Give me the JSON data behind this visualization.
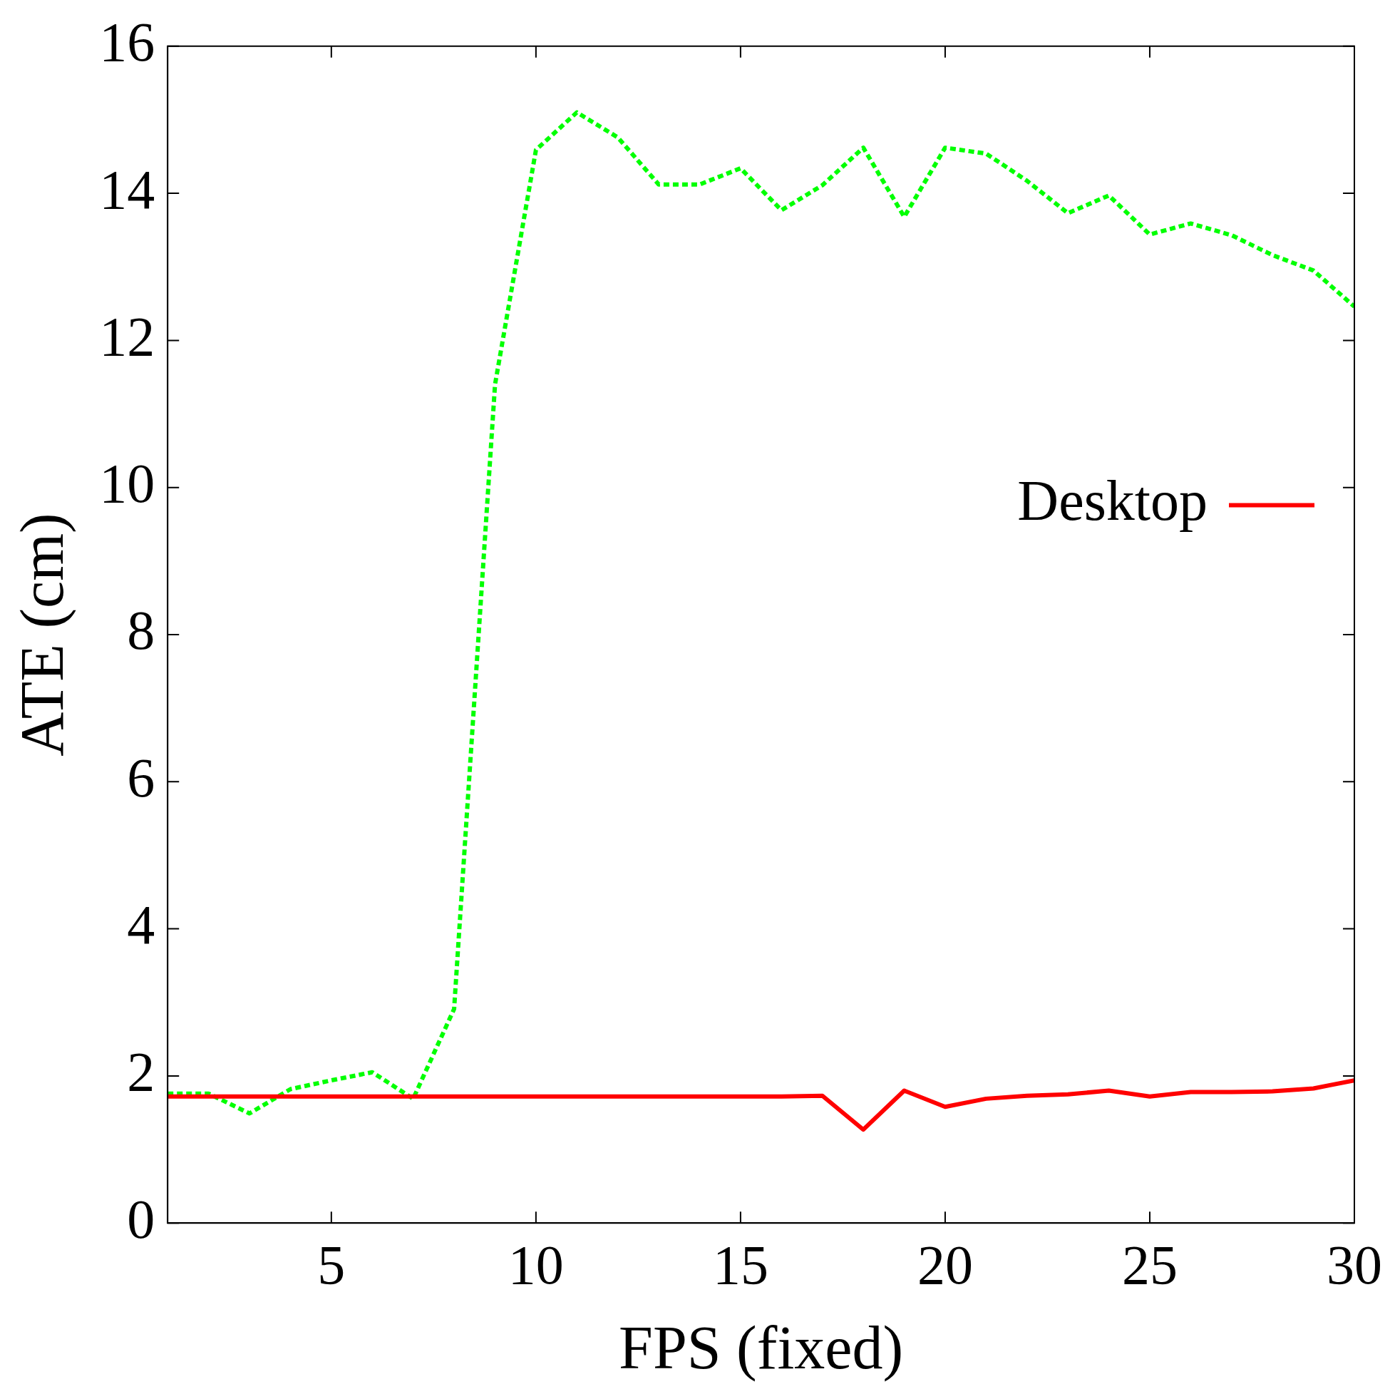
{
  "chart_data": {
    "type": "line",
    "xlabel": "FPS (fixed)",
    "ylabel": "ATE (cm)",
    "x": [
      1,
      2,
      3,
      4,
      5,
      6,
      7,
      8,
      9,
      10,
      11,
      12,
      13,
      14,
      15,
      16,
      17,
      18,
      19,
      20,
      21,
      22,
      23,
      24,
      25,
      26,
      27,
      28,
      29,
      30
    ],
    "series": [
      {
        "name": "Desktop",
        "color": "#ff0000",
        "line_style": "solid",
        "values": [
          1.72,
          1.72,
          1.72,
          1.72,
          1.72,
          1.72,
          1.72,
          1.72,
          1.72,
          1.72,
          1.72,
          1.72,
          1.72,
          1.72,
          1.72,
          1.72,
          1.73,
          1.27,
          1.8,
          1.58,
          1.69,
          1.73,
          1.75,
          1.8,
          1.72,
          1.78,
          1.78,
          1.79,
          1.83,
          1.94
        ]
      },
      {
        "color": "#00ff00",
        "line_style": "dotted",
        "values": [
          1.76,
          1.76,
          1.49,
          1.82,
          1.94,
          2.05,
          1.69,
          2.91,
          11.4,
          14.59,
          15.1,
          14.76,
          14.12,
          14.12,
          14.34,
          13.77,
          14.11,
          14.62,
          13.68,
          14.62,
          14.54,
          14.17,
          13.73,
          13.97,
          13.44,
          13.59,
          13.43,
          13.16,
          12.95,
          12.46
        ]
      }
    ],
    "xlim": [
      1,
      30
    ],
    "xticks": [
      5,
      10,
      15,
      20,
      25,
      30
    ],
    "ylim": [
      0,
      16
    ],
    "yticks": [
      0,
      2,
      4,
      6,
      8,
      10,
      12,
      14,
      16
    ],
    "grid": false,
    "legend": "right",
    "marker": "none"
  }
}
